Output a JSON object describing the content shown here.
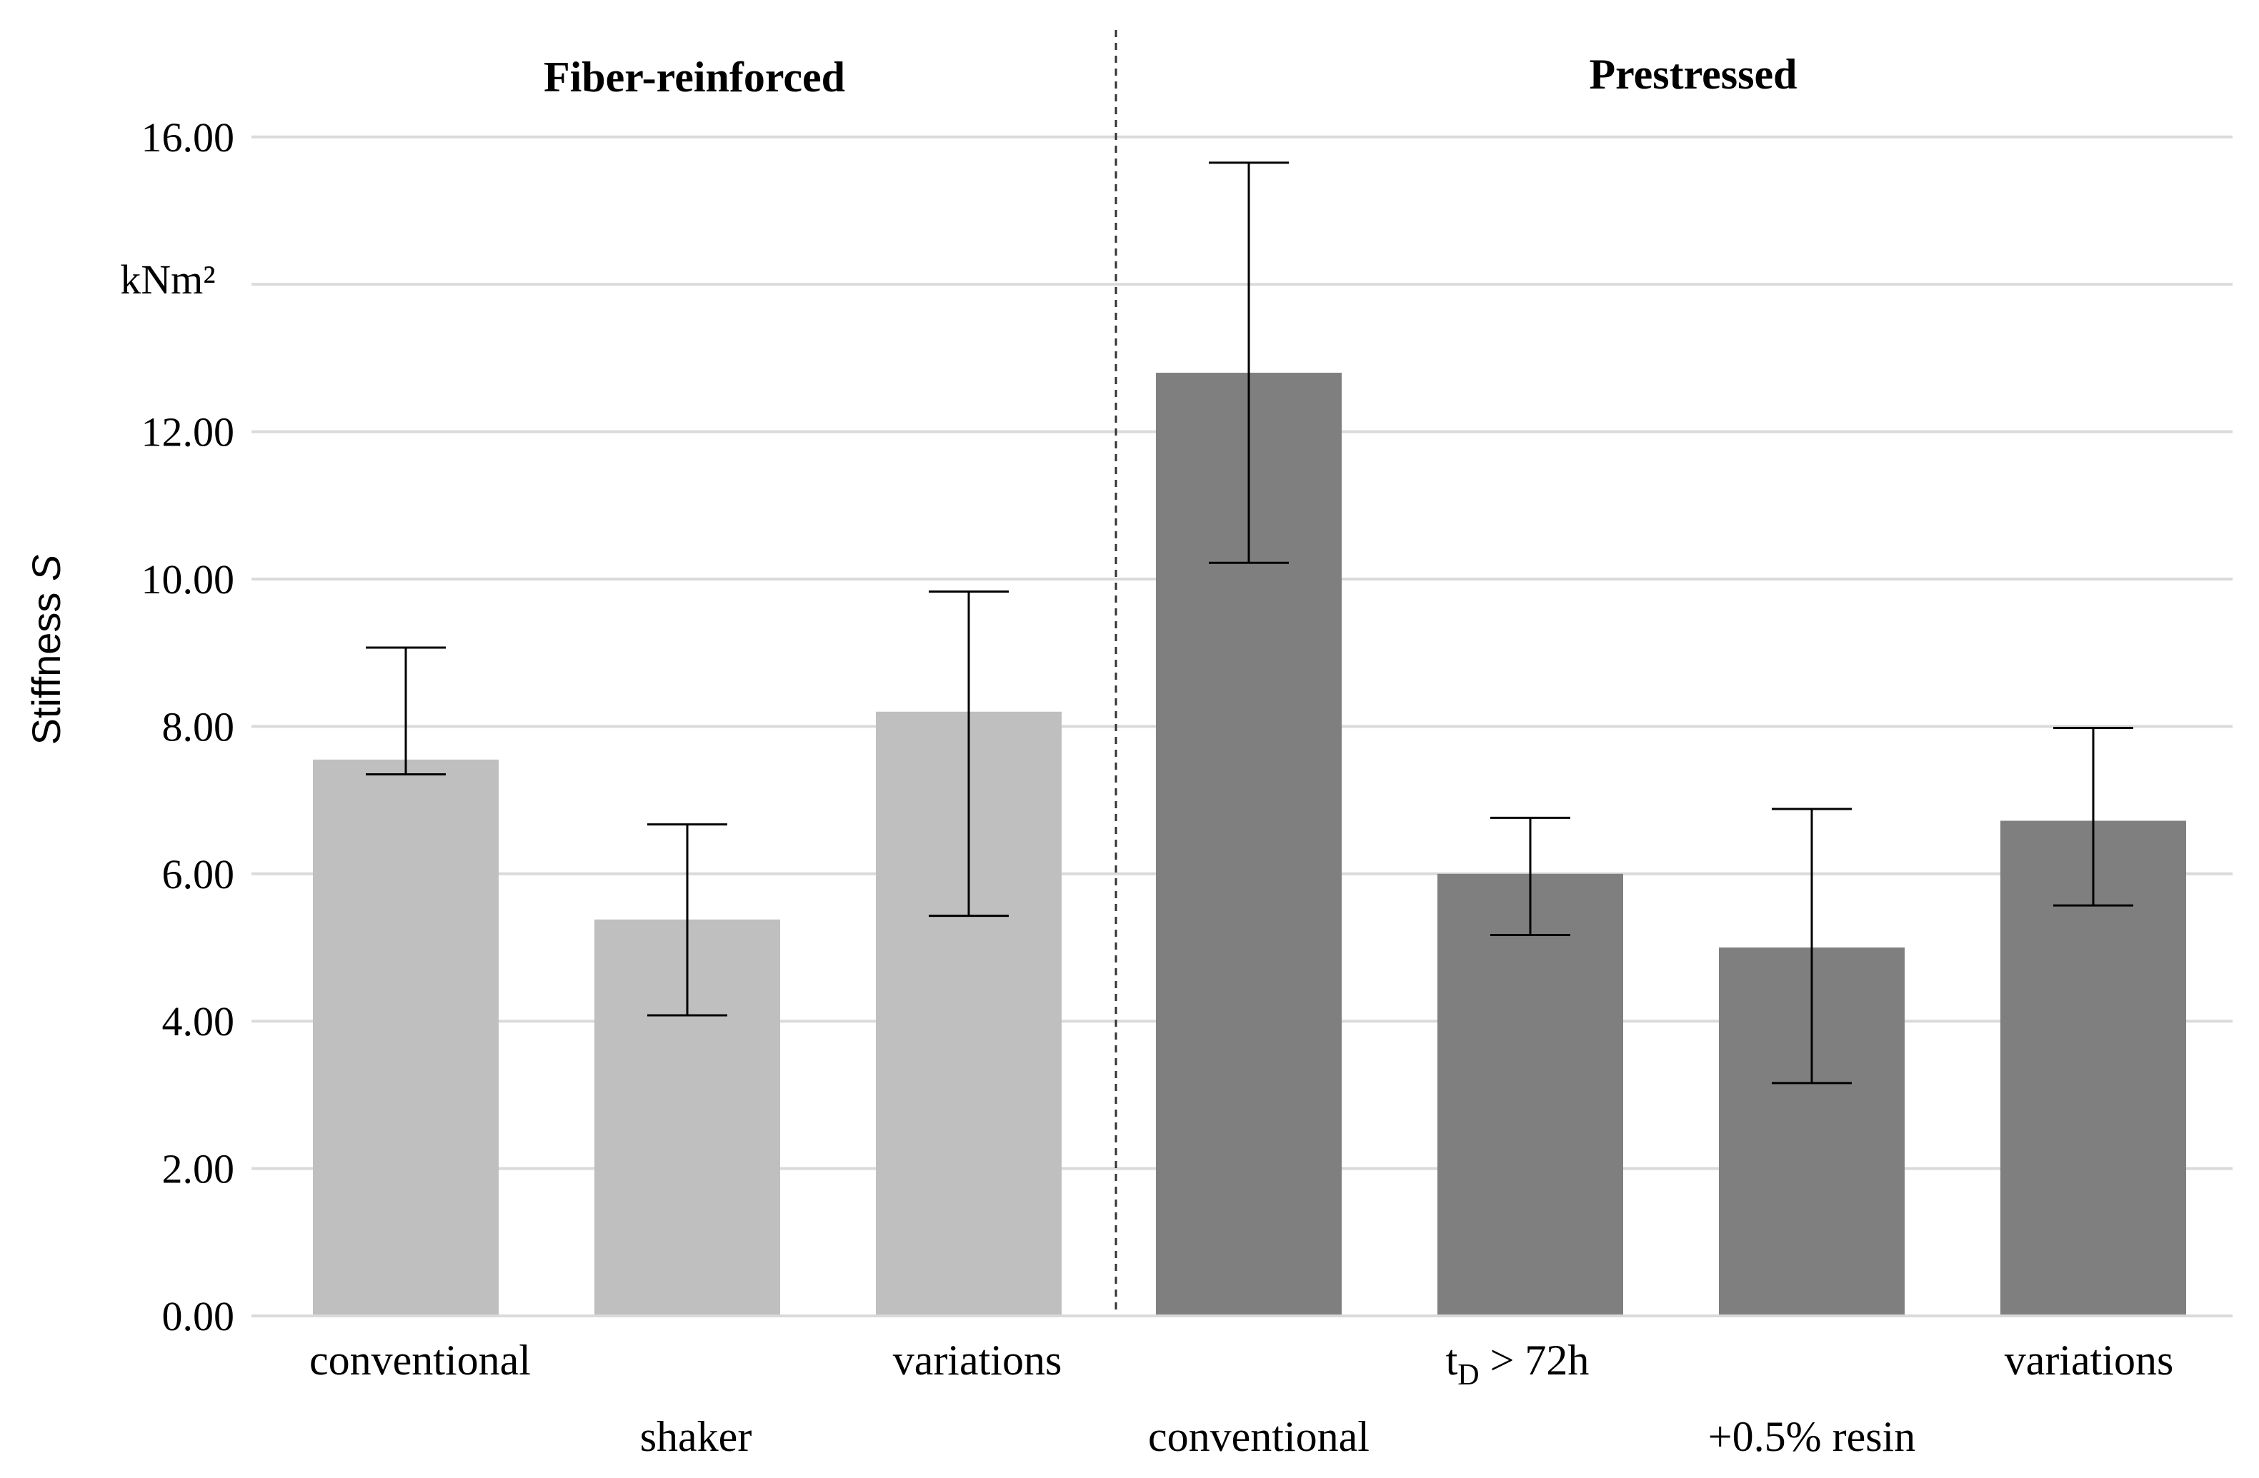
{
  "chart_data": {
    "type": "bar",
    "ylabel": "Stiffness ",
    "ylabel_var": "S",
    "unit_label": "kNm²",
    "ylim": [
      0,
      16
    ],
    "yticks": [
      "0.00",
      "2.00",
      "4.00",
      "6.00",
      "8.00",
      "10.00",
      "12.00",
      "16.00"
    ],
    "tick_values": [
      0,
      2,
      4,
      6,
      8,
      10,
      12,
      16
    ],
    "grid": true,
    "groups": [
      {
        "title": "Fiber-reinforced",
        "color": "#bfbfbf",
        "bars": [
          {
            "label": "conventional",
            "value": 7.55,
            "err_low": 7.35,
            "err_high": 9.07
          },
          {
            "label": "shaker",
            "value": 5.38,
            "err_low": 4.08,
            "err_high": 6.67
          },
          {
            "label": "variations",
            "value": 8.2,
            "err_low": 5.43,
            "err_high": 9.83
          }
        ]
      },
      {
        "title": "Prestressed",
        "color": "#7f7f7f",
        "bars": [
          {
            "label": "conventional",
            "value": 12.8,
            "err_low": 10.22,
            "err_high": 15.65
          },
          {
            "label_main": "t",
            "label_sub": "D",
            "label_rest": " > 72h",
            "value": 6.0,
            "err_low": 5.17,
            "err_high": 6.76
          },
          {
            "label": "+0.5% resin",
            "value": 5.0,
            "err_low": 3.16,
            "err_high": 6.88
          },
          {
            "label": "variations",
            "value": 6.72,
            "err_low": 5.57,
            "err_high": 7.98
          }
        ]
      }
    ]
  }
}
